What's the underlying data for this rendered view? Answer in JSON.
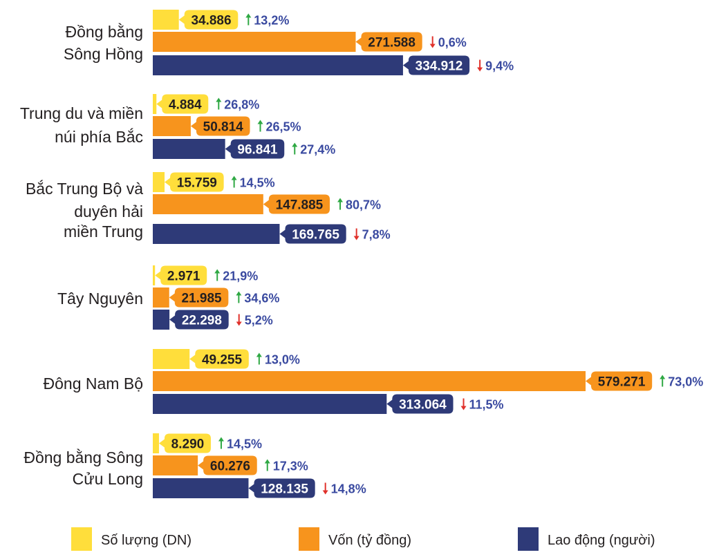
{
  "chart_data": {
    "type": "bar",
    "orientation": "horizontal",
    "categories": [
      [
        "Đồng bằng",
        "Sông Hồng"
      ],
      [
        "Trung du và miền",
        "núi phía Bắc"
      ],
      [
        "Bắc Trung Bộ và",
        "duyên hải",
        "miền Trung"
      ],
      [
        "Tây Nguyên"
      ],
      [
        "Đông Nam Bộ"
      ],
      [
        "Đồng bằng Sông",
        "Cửu Long"
      ]
    ],
    "series": [
      {
        "name": "Số lượng (DN)",
        "color": "#ffde3b",
        "values": [
          34886,
          4884,
          15759,
          2971,
          49255,
          8290
        ],
        "labels": [
          "34.886",
          "4.884",
          "15.759",
          "2.971",
          "49.255",
          "8.290"
        ],
        "changes": [
          "13,2%",
          "26,8%",
          "14,5%",
          "21,9%",
          "13,0%",
          "14,5%"
        ],
        "directions": [
          "up",
          "up",
          "up",
          "up",
          "up",
          "up"
        ]
      },
      {
        "name": "Vốn (tỷ đồng)",
        "color": "#f7941d",
        "values": [
          271588,
          50814,
          147885,
          21985,
          579271,
          60276
        ],
        "labels": [
          "271.588",
          "50.814",
          "147.885",
          "21.985",
          "579.271",
          "60.276"
        ],
        "changes": [
          "0,6%",
          "26,5%",
          "80,7%",
          "34,6%",
          "73,0%",
          "17,3%"
        ],
        "directions": [
          "down",
          "up",
          "up",
          "up",
          "up",
          "up"
        ]
      },
      {
        "name": "Lao động (người)",
        "color": "#2e3a78",
        "values": [
          334912,
          96841,
          169765,
          22298,
          313064,
          128135
        ],
        "labels": [
          "334.912",
          "96.841",
          "169.765",
          "22.298",
          "313.064",
          "128.135"
        ],
        "changes": [
          "9,4%",
          "27,4%",
          "7,8%",
          "5,2%",
          "11,5%",
          "14,8%"
        ],
        "directions": [
          "down",
          "up",
          "down",
          "down",
          "down",
          "down"
        ]
      }
    ],
    "legend_position": "bottom",
    "up_color": "#2ea843",
    "down_color": "#e0312b",
    "change_text_color": "#3a4aa0"
  }
}
